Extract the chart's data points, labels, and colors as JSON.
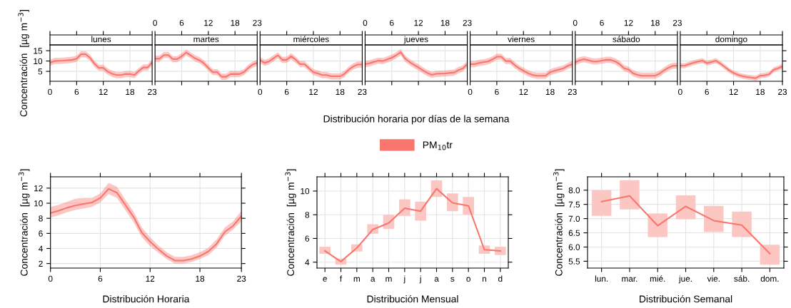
{
  "chart_data": [
    {
      "type": "line",
      "title": "lunes",
      "ylabel": "Concentración  [µg m$^{−3}$]",
      "x": [
        0,
        1,
        2,
        3,
        4,
        5,
        6,
        7,
        8,
        9,
        10,
        11,
        12,
        13,
        14,
        15,
        16,
        17,
        18,
        19,
        20,
        21,
        22,
        23
      ],
      "xlim": [
        0,
        23
      ],
      "xticks": [
        0,
        6,
        12,
        18,
        23
      ],
      "ylim": [
        0.2,
        17.8
      ],
      "yticks": [
        5,
        10,
        15
      ],
      "grid": true,
      "series": [
        {
          "color": "#f8766d",
          "values": [
            9.1,
            10.0,
            10.1,
            10.2,
            10.4,
            10.6,
            11.1,
            13.3,
            13.3,
            11.6,
            8.7,
            6.7,
            6.7,
            4.9,
            3.8,
            3.2,
            3.2,
            3.7,
            3.7,
            3.2,
            5.2,
            6.9,
            6.9,
            9.4
          ],
          "lower": [
            7.6,
            8.5,
            8.6,
            8.7,
            8.9,
            9.1,
            9.6,
            11.8,
            11.8,
            10.1,
            7.2,
            5.2,
            5.2,
            3.4,
            2.3,
            1.7,
            1.7,
            2.2,
            2.2,
            1.7,
            3.7,
            5.4,
            5.4,
            7.9
          ],
          "upper": [
            10.6,
            11.5,
            11.6,
            11.7,
            11.9,
            12.1,
            12.6,
            14.8,
            14.8,
            13.1,
            10.2,
            8.2,
            8.2,
            6.4,
            5.3,
            4.7,
            4.7,
            5.2,
            5.2,
            4.7,
            6.7,
            8.4,
            8.4,
            10.9
          ]
        }
      ]
    },
    {
      "type": "line",
      "title": "martes",
      "x": [
        0,
        1,
        2,
        3,
        4,
        5,
        6,
        7,
        8,
        9,
        10,
        11,
        12,
        13,
        14,
        15,
        16,
        17,
        18,
        19,
        20,
        21,
        22,
        23
      ],
      "xlim": [
        0,
        23
      ],
      "xticks": [
        0,
        6,
        12,
        18,
        23
      ],
      "x2lim": [
        0,
        23
      ],
      "x2ticks": [
        0,
        6,
        12,
        18,
        23
      ],
      "ylim": [
        0.2,
        17.8
      ],
      "yticks": [
        5,
        10,
        15
      ],
      "grid": true,
      "tick_labels": false,
      "series": [
        {
          "color": "#f8766d",
          "values": [
            11.1,
            11.1,
            12.9,
            12.9,
            10.9,
            10.9,
            12.3,
            14.1,
            12.8,
            11.3,
            10.4,
            8.9,
            6.7,
            4.6,
            4.6,
            2.4,
            2.4,
            3.7,
            3.7,
            3.7,
            4.6,
            6.7,
            8.3,
            9.1
          ],
          "lower": [
            9.6,
            9.6,
            11.4,
            11.4,
            9.4,
            9.4,
            10.8,
            12.6,
            11.3,
            9.8,
            8.9,
            7.4,
            5.2,
            3.1,
            3.1,
            0.9,
            0.9,
            2.2,
            2.2,
            2.2,
            3.1,
            5.2,
            6.8,
            7.6
          ],
          "upper": [
            12.6,
            12.6,
            14.4,
            14.4,
            12.4,
            12.4,
            13.8,
            15.6,
            14.3,
            12.8,
            11.9,
            10.4,
            8.2,
            6.1,
            6.1,
            3.9,
            3.9,
            5.2,
            5.2,
            5.2,
            6.1,
            8.2,
            9.8,
            10.6
          ]
        }
      ]
    },
    {
      "type": "line",
      "title": "miércoles",
      "x": [
        0,
        1,
        2,
        3,
        4,
        5,
        6,
        7,
        8,
        9,
        10,
        11,
        12,
        13,
        14,
        15,
        16,
        17,
        18,
        19,
        20,
        21,
        22,
        23
      ],
      "xlim": [
        0,
        23
      ],
      "xticks": [
        0,
        6,
        12,
        18,
        23
      ],
      "ylim": [
        0.2,
        17.8
      ],
      "yticks": [
        5,
        10,
        15
      ],
      "grid": true,
      "tick_labels": "x",
      "series": [
        {
          "color": "#f8766d",
          "values": [
            10.4,
            9.1,
            9.8,
            11.3,
            12.8,
            10.6,
            10.6,
            12.3,
            10.7,
            8.5,
            8.5,
            6.5,
            4.6,
            4.0,
            3.2,
            3.2,
            2.6,
            2.6,
            2.6,
            3.8,
            5.9,
            7.4,
            8.3,
            8.3
          ],
          "lower": [
            8.9,
            7.6,
            8.3,
            9.8,
            11.3,
            9.1,
            9.1,
            10.8,
            9.2,
            7.0,
            7.0,
            5.0,
            3.1,
            2.5,
            1.7,
            1.7,
            1.1,
            1.1,
            1.1,
            2.3,
            4.4,
            5.9,
            6.8,
            6.8
          ],
          "upper": [
            11.9,
            10.6,
            11.3,
            12.8,
            14.3,
            12.1,
            12.1,
            13.8,
            12.2,
            10.0,
            10.0,
            8.0,
            6.1,
            5.5,
            4.7,
            4.7,
            4.1,
            4.1,
            4.1,
            5.3,
            7.4,
            8.9,
            9.8,
            9.8
          ]
        }
      ]
    },
    {
      "type": "line",
      "title": "jueves",
      "xlabel": "Distribución horaria por días de la semana",
      "legend": "bottom",
      "x": [
        0,
        1,
        2,
        3,
        4,
        5,
        6,
        7,
        8,
        9,
        10,
        11,
        12,
        13,
        14,
        15,
        16,
        17,
        18,
        19,
        20,
        21,
        22,
        23
      ],
      "xlim": [
        0,
        23
      ],
      "xticks": [
        0,
        6,
        12,
        18,
        23
      ],
      "x2lim": [
        0,
        23
      ],
      "x2ticks": [
        0,
        6,
        12,
        18,
        23
      ],
      "ylim": [
        0.2,
        17.8
      ],
      "yticks": [
        5,
        10,
        15
      ],
      "grid": true,
      "tick_labels": false,
      "series": [
        {
          "name": "PM$_{10}$tr",
          "color": "#f8766d",
          "values": [
            8.5,
            8.9,
            9.6,
            10.2,
            10.0,
            10.8,
            11.6,
            12.8,
            14.3,
            11.2,
            9.5,
            8.2,
            6.9,
            5.5,
            4.2,
            3.3,
            3.8,
            3.9,
            4.0,
            4.2,
            4.4,
            5.6,
            6.4,
            8.5
          ],
          "lower": [
            7.0,
            7.4,
            8.1,
            8.7,
            8.5,
            9.3,
            10.1,
            11.3,
            12.8,
            9.7,
            8.0,
            6.7,
            5.4,
            4.0,
            2.7,
            1.8,
            2.3,
            2.4,
            2.5,
            2.7,
            2.9,
            4.1,
            4.9,
            7.0
          ],
          "upper": [
            10.0,
            10.4,
            11.1,
            11.7,
            11.5,
            12.3,
            13.1,
            14.3,
            15.8,
            12.7,
            11.0,
            9.7,
            8.4,
            7.0,
            5.7,
            4.8,
            5.3,
            5.4,
            5.5,
            5.7,
            5.9,
            7.1,
            7.9,
            10.0
          ]
        }
      ]
    },
    {
      "type": "line",
      "title": "viernes",
      "x": [
        0,
        1,
        2,
        3,
        4,
        5,
        6,
        7,
        8,
        9,
        10,
        11,
        12,
        13,
        14,
        15,
        16,
        17,
        18,
        19,
        20,
        21,
        22,
        23
      ],
      "xlim": [
        0,
        23
      ],
      "xticks": [
        0,
        6,
        12,
        18,
        23
      ],
      "ylim": [
        0.2,
        17.8
      ],
      "yticks": [
        5,
        10,
        15
      ],
      "grid": true,
      "tick_labels": "x",
      "series": [
        {
          "color": "#f8766d",
          "values": [
            8.5,
            8.5,
            9.1,
            9.4,
            9.8,
            10.8,
            12.1,
            12.1,
            10.0,
            10.0,
            8.1,
            6.5,
            5.3,
            4.1,
            3.3,
            2.9,
            2.9,
            2.9,
            4.6,
            5.3,
            5.9,
            6.5,
            7.7,
            8.5
          ],
          "lower": [
            7.0,
            7.0,
            7.6,
            7.9,
            8.3,
            9.3,
            10.6,
            10.6,
            8.5,
            8.5,
            6.6,
            5.0,
            3.8,
            2.6,
            1.8,
            1.4,
            1.4,
            1.4,
            3.1,
            3.8,
            4.4,
            5.0,
            6.2,
            7.0
          ],
          "upper": [
            10.0,
            10.0,
            10.6,
            10.9,
            11.3,
            12.3,
            13.6,
            13.6,
            11.5,
            11.5,
            9.6,
            8.0,
            6.8,
            5.6,
            4.8,
            4.4,
            4.4,
            4.4,
            6.1,
            6.8,
            7.4,
            8.0,
            9.2,
            10.0
          ]
        }
      ]
    },
    {
      "type": "line",
      "title": "sábado",
      "x": [
        0,
        1,
        2,
        3,
        4,
        5,
        6,
        7,
        8,
        9,
        10,
        11,
        12,
        13,
        14,
        15,
        16,
        17,
        18,
        19,
        20,
        21,
        22,
        23
      ],
      "xlim": [
        0,
        23
      ],
      "xticks": [
        0,
        6,
        12,
        18,
        23
      ],
      "x2lim": [
        0,
        23
      ],
      "x2ticks": [
        0,
        6,
        12,
        18,
        23
      ],
      "ylim": [
        0.2,
        17.8
      ],
      "yticks": [
        5,
        10,
        15
      ],
      "grid": true,
      "tick_labels": false,
      "series": [
        {
          "color": "#f8766d",
          "values": [
            9.4,
            10.4,
            10.9,
            10.4,
            9.8,
            9.8,
            10.2,
            10.6,
            10.6,
            9.8,
            8.5,
            6.5,
            5.9,
            4.1,
            3.3,
            2.9,
            2.9,
            2.9,
            2.9,
            3.9,
            5.5,
            6.8,
            7.7,
            7.7
          ],
          "lower": [
            7.9,
            8.9,
            9.4,
            8.9,
            8.3,
            8.3,
            8.7,
            9.1,
            9.1,
            8.3,
            7.0,
            5.0,
            4.4,
            2.6,
            1.8,
            1.4,
            1.4,
            1.4,
            1.4,
            2.4,
            4.0,
            5.3,
            6.2,
            6.2
          ],
          "upper": [
            10.9,
            11.9,
            12.4,
            11.9,
            11.3,
            11.3,
            11.7,
            12.1,
            12.1,
            11.3,
            10.0,
            8.0,
            7.4,
            5.6,
            4.8,
            4.4,
            4.4,
            4.4,
            4.4,
            5.4,
            7.0,
            8.3,
            9.2,
            9.2
          ]
        }
      ]
    },
    {
      "type": "line",
      "title": "domingo",
      "x": [
        0,
        1,
        2,
        3,
        4,
        5,
        6,
        7,
        8,
        9,
        10,
        11,
        12,
        13,
        14,
        15,
        16,
        17,
        18,
        19,
        20,
        21,
        22,
        23
      ],
      "xlim": [
        0,
        23
      ],
      "xticks": [
        0,
        6,
        12,
        18,
        23
      ],
      "ylim": [
        0.2,
        17.8
      ],
      "yticks": [
        5,
        10,
        15
      ],
      "grid": true,
      "tick_labels": "x",
      "series": [
        {
          "color": "#f8766d",
          "values": [
            7.7,
            7.8,
            8.5,
            9.2,
            9.8,
            10.2,
            9.0,
            9.5,
            10.2,
            8.8,
            7.2,
            5.5,
            4.2,
            3.3,
            2.7,
            2.3,
            2.0,
            1.7,
            2.9,
            3.1,
            3.6,
            5.7,
            6.5,
            7.4
          ],
          "lower": [
            6.5,
            6.6,
            7.3,
            8.0,
            8.6,
            9.0,
            7.8,
            8.3,
            9.0,
            7.6,
            6.0,
            4.3,
            3.0,
            2.1,
            1.5,
            1.1,
            0.8,
            0.5,
            1.7,
            1.9,
            2.4,
            4.5,
            5.3,
            6.2
          ],
          "upper": [
            8.9,
            9.0,
            9.7,
            10.4,
            11.0,
            11.4,
            10.2,
            10.7,
            11.4,
            10.0,
            8.4,
            6.7,
            5.4,
            4.5,
            3.9,
            3.5,
            3.2,
            2.9,
            4.1,
            4.3,
            4.8,
            6.9,
            7.7,
            8.6
          ]
        }
      ]
    },
    {
      "type": "line",
      "xlabel": "Distribución Horaria",
      "ylabel": "Concentración  [µg m$^{−3}$]",
      "x": [
        0,
        1,
        2,
        3,
        4,
        5,
        6,
        7,
        8,
        9,
        10,
        11,
        12,
        13,
        14,
        15,
        16,
        17,
        18,
        19,
        20,
        21,
        22,
        23
      ],
      "xlim": [
        0,
        23
      ],
      "xticks": [
        0,
        6,
        12,
        18,
        23
      ],
      "ylim": [
        1.4,
        13.5
      ],
      "yticks": [
        2,
        4,
        6,
        8,
        10,
        12
      ],
      "grid": true,
      "series": [
        {
          "color": "#f8766d",
          "values": [
            8.7,
            9.0,
            9.4,
            9.7,
            9.9,
            10.1,
            10.7,
            11.9,
            11.4,
            9.8,
            8.2,
            6.1,
            4.9,
            3.9,
            3.0,
            2.4,
            2.4,
            2.6,
            3.0,
            3.6,
            4.6,
            6.2,
            7.0,
            8.3
          ],
          "lower": [
            8.1,
            8.4,
            8.8,
            9.1,
            9.3,
            9.5,
            10.1,
            11.2,
            10.7,
            9.1,
            7.5,
            5.5,
            4.3,
            3.4,
            2.6,
            2.0,
            2.0,
            2.2,
            2.6,
            3.1,
            4.1,
            5.7,
            6.5,
            7.6
          ],
          "upper": [
            9.5,
            9.8,
            10.2,
            10.6,
            10.7,
            10.7,
            11.3,
            12.7,
            12.2,
            10.5,
            8.9,
            6.8,
            5.5,
            4.4,
            3.5,
            2.9,
            2.9,
            3.1,
            3.5,
            4.1,
            5.2,
            6.8,
            7.6,
            9.0
          ]
        }
      ]
    },
    {
      "type": "line",
      "xlabel": "Distribución Mensual",
      "ylabel": "Concentración  [µg m$^{−3}$]",
      "categories": [
        "e",
        "f",
        "m",
        "a",
        "m",
        "j",
        "j",
        "a",
        "s",
        "o",
        "n",
        "d"
      ],
      "ylim": [
        3.5,
        11.2
      ],
      "yticks": [
        4,
        6,
        8,
        10
      ],
      "grid": true,
      "series": [
        {
          "type": "bar",
          "color": "#fcc6c3",
          "base": [
            4.7,
            3.8,
            4.9,
            6.4,
            6.8,
            7.9,
            7.5,
            9.5,
            8.3,
            8.0,
            4.7,
            4.6
          ],
          "values": [
            0.6,
            0.5,
            0.6,
            0.8,
            1.2,
            1.4,
            1.6,
            1.4,
            1.5,
            1.5,
            0.7,
            0.7
          ]
        },
        {
          "color": "#f8766d",
          "values": [
            4.95,
            4.05,
            5.2,
            6.75,
            7.3,
            8.55,
            8.3,
            10.2,
            9.0,
            8.75,
            5.05,
            4.95
          ]
        }
      ]
    },
    {
      "type": "line",
      "xlabel": "Distribución Semanal",
      "ylabel": "Concentración  [µg m$^{−3}$]",
      "categories": [
        "lun.",
        "mar.",
        "mié.",
        "jue.",
        "vie.",
        "sáb.",
        "dom."
      ],
      "ylim": [
        5.26,
        8.47
      ],
      "yticks": [
        {
          "value": 5.5,
          "label": "5.5"
        },
        {
          "value": 6,
          "label": "6.0"
        },
        {
          "value": 6.5,
          "label": "6.5"
        },
        {
          "value": 7,
          "label": "7.0"
        },
        {
          "value": 7.5,
          "label": "7.5"
        },
        {
          "value": 8,
          "label": "8.0"
        }
      ],
      "grid": true,
      "series": [
        {
          "type": "bar",
          "color": "#fcc6c3",
          "base": [
            7.1,
            7.32,
            6.35,
            6.98,
            6.53,
            6.35,
            5.38
          ],
          "values": [
            0.9,
            1.03,
            0.83,
            0.84,
            0.92,
            0.9,
            0.7
          ]
        },
        {
          "color": "#f8766d",
          "values": [
            7.6,
            7.8,
            6.75,
            7.43,
            6.93,
            6.77,
            5.77
          ]
        }
      ]
    }
  ]
}
